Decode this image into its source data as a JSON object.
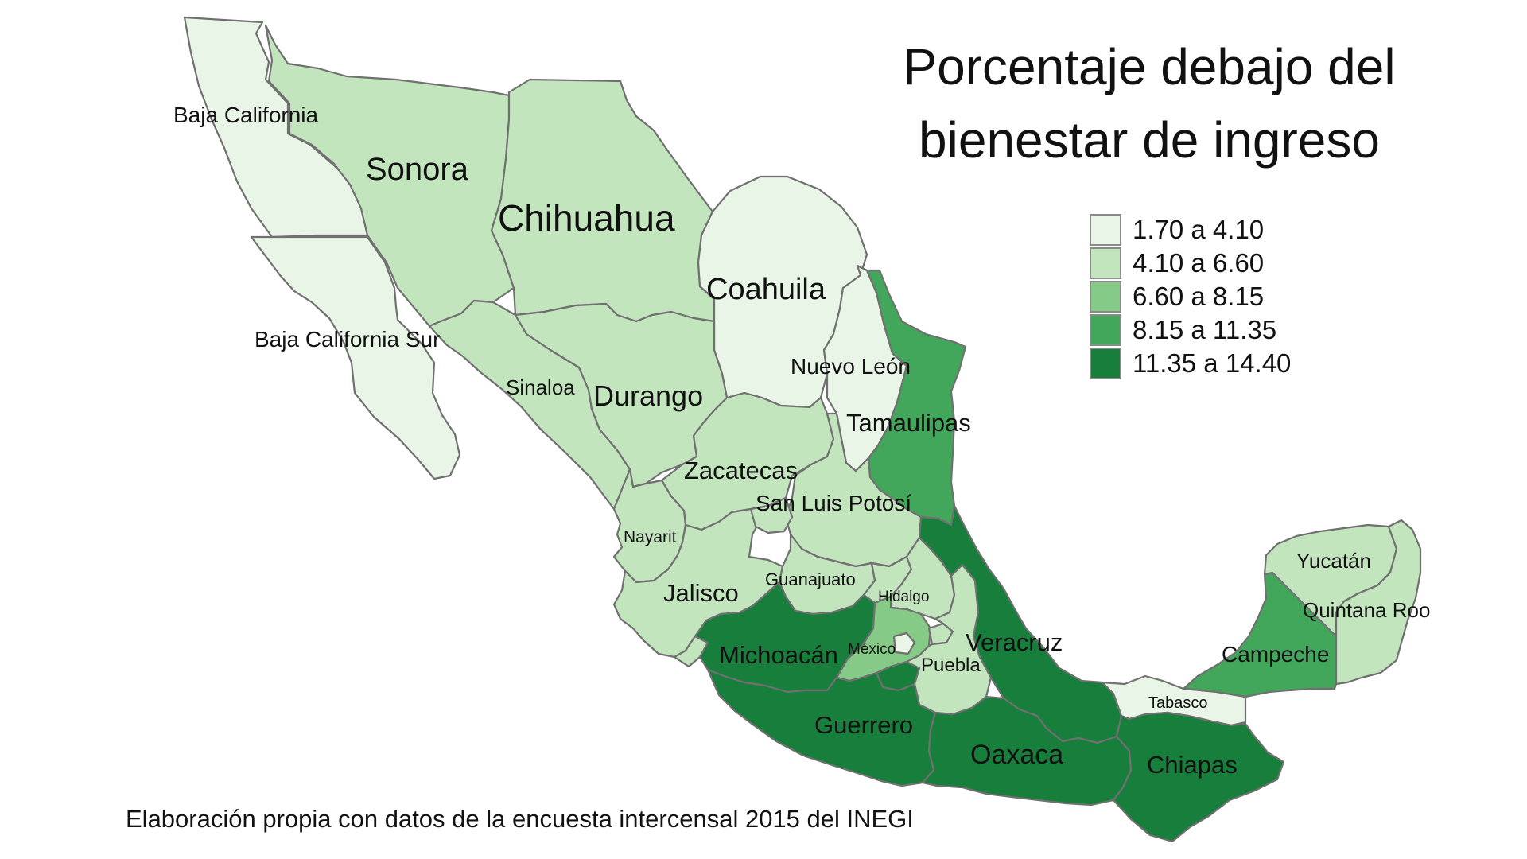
{
  "map": {
    "title_line1": "Porcentaje debajo del",
    "title_line2": "bienestar de ingreso",
    "caption": "Elaboración propia con datos de la encuesta intercensal 2015 del INEGI",
    "legend": [
      {
        "label": "1.70 a 4.10",
        "color": "#e9f5e6"
      },
      {
        "label": "4.10 a 6.60",
        "color": "#c2e5bd"
      },
      {
        "label": "6.60 a 8.15",
        "color": "#85ca87"
      },
      {
        "label": "8.15 a 11.35",
        "color": "#42a65b"
      },
      {
        "label": "11.35 a 14.40",
        "color": "#177e3c"
      }
    ],
    "states": {
      "baja_california": {
        "name": "Baja California",
        "class": 0
      },
      "baja_california_sur": {
        "name": "Baja California Sur",
        "class": 0
      },
      "sonora": {
        "name": "Sonora",
        "class": 1
      },
      "chihuahua": {
        "name": "Chihuahua",
        "class": 1
      },
      "coahuila": {
        "name": "Coahuila",
        "class": 0
      },
      "nuevo_leon": {
        "name": "Nuevo León",
        "class": 0
      },
      "tamaulipas": {
        "name": "Tamaulipas",
        "class": 3
      },
      "sinaloa": {
        "name": "Sinaloa",
        "class": 1
      },
      "durango": {
        "name": "Durango",
        "class": 1
      },
      "zacatecas": {
        "name": "Zacatecas",
        "class": 1
      },
      "san_luis_potosi": {
        "name": "San Luis Potosí",
        "class": 1
      },
      "nayarit": {
        "name": "Nayarit",
        "class": 1
      },
      "jalisco": {
        "name": "Jalisco",
        "class": 1
      },
      "guanajuato": {
        "name": "Guanajuato",
        "class": 1
      },
      "hidalgo": {
        "name": "Hidalgo",
        "class": 1
      },
      "michoacan": {
        "name": "Michoacán",
        "class": 4
      },
      "mexico": {
        "name": "México",
        "class": 2
      },
      "puebla": {
        "name": "Puebla",
        "class": 1
      },
      "veracruz": {
        "name": "Veracruz",
        "class": 4
      },
      "guerrero": {
        "name": "Guerrero",
        "class": 4
      },
      "oaxaca": {
        "name": "Oaxaca",
        "class": 4
      },
      "chiapas": {
        "name": "Chiapas",
        "class": 4
      },
      "tabasco": {
        "name": "Tabasco",
        "class": 0
      },
      "campeche": {
        "name": "Campeche",
        "class": 3
      },
      "yucatan": {
        "name": "Yucatán",
        "class": 1
      },
      "quintana_roo": {
        "name": "Quintana Roo",
        "class": 1
      },
      "morelos": {
        "class": 4
      },
      "tlaxcala": {
        "class": 1
      },
      "queretaro": {
        "class": 1
      },
      "aguascalientes": {
        "class": 1
      },
      "colima": {
        "class": 1
      },
      "cdmx": {
        "class": 0
      }
    }
  }
}
